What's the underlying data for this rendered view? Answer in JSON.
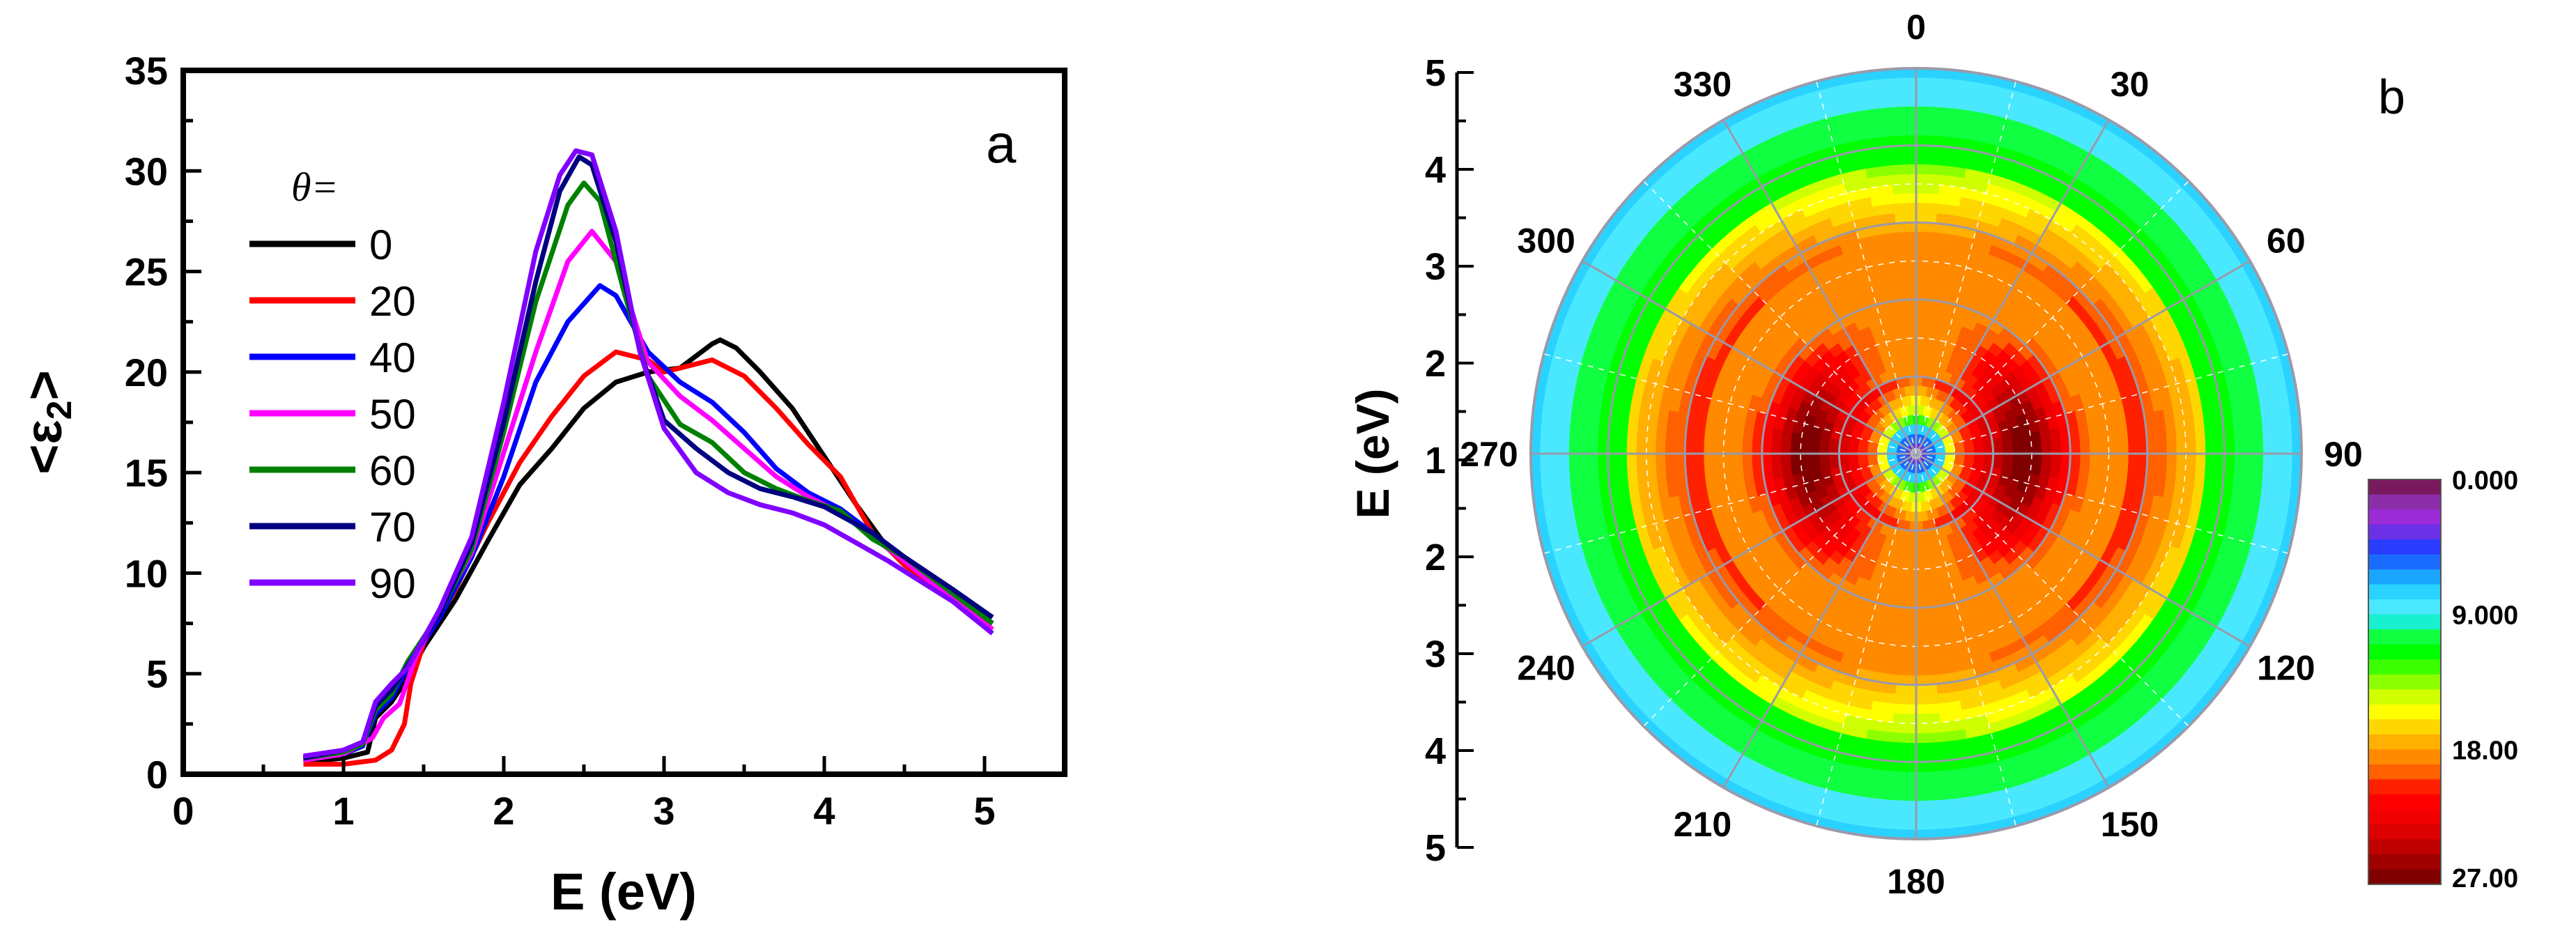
{
  "chart_data": [
    {
      "type": "line",
      "panel_letter": "a",
      "xlabel": "E (eV)",
      "ylabel_main": "<ε",
      "ylabel_sub": "2",
      "ylabel_end": ">",
      "xlim": [
        0,
        5.5
      ],
      "ylim": [
        0,
        35
      ],
      "xticks": [
        0,
        1,
        2,
        3,
        4,
        5
      ],
      "yticks": [
        0,
        5,
        10,
        15,
        20,
        25,
        30,
        35
      ],
      "legend_title": "θ=",
      "series": [
        {
          "name": "0",
          "color": "#000000",
          "points": [
            [
              0.75,
              0.6
            ],
            [
              1.0,
              0.8
            ],
            [
              1.15,
              1.1
            ],
            [
              1.2,
              2.8
            ],
            [
              1.3,
              3.6
            ],
            [
              1.4,
              4.8
            ],
            [
              1.5,
              6.3
            ],
            [
              1.7,
              8.7
            ],
            [
              1.9,
              11.6
            ],
            [
              2.1,
              14.4
            ],
            [
              2.3,
              16.2
            ],
            [
              2.5,
              18.2
            ],
            [
              2.7,
              19.5
            ],
            [
              2.9,
              20.0
            ],
            [
              3.1,
              20.2
            ],
            [
              3.3,
              21.4
            ],
            [
              3.35,
              21.6
            ],
            [
              3.45,
              21.2
            ],
            [
              3.6,
              20.0
            ],
            [
              3.8,
              18.2
            ],
            [
              4.0,
              15.8
            ],
            [
              4.2,
              13.4
            ],
            [
              4.4,
              11.2
            ],
            [
              4.6,
              10.2
            ],
            [
              4.8,
              8.8
            ],
            [
              5.05,
              7.5
            ]
          ]
        },
        {
          "name": "20",
          "color": "#ff0000",
          "points": [
            [
              0.75,
              0.5
            ],
            [
              1.0,
              0.5
            ],
            [
              1.2,
              0.7
            ],
            [
              1.3,
              1.2
            ],
            [
              1.38,
              2.5
            ],
            [
              1.42,
              4.5
            ],
            [
              1.5,
              6.5
            ],
            [
              1.7,
              9.2
            ],
            [
              1.9,
              12.5
            ],
            [
              2.1,
              15.5
            ],
            [
              2.3,
              17.8
            ],
            [
              2.5,
              19.8
            ],
            [
              2.7,
              21.0
            ],
            [
              2.9,
              20.6
            ],
            [
              3.0,
              20.0
            ],
            [
              3.15,
              20.3
            ],
            [
              3.3,
              20.6
            ],
            [
              3.5,
              19.8
            ],
            [
              3.7,
              18.2
            ],
            [
              3.9,
              16.4
            ],
            [
              4.1,
              14.8
            ],
            [
              4.3,
              12.0
            ],
            [
              4.5,
              10.4
            ],
            [
              4.8,
              8.8
            ],
            [
              5.05,
              7.2
            ]
          ]
        },
        {
          "name": "40",
          "color": "#0000ff",
          "points": [
            [
              0.75,
              0.7
            ],
            [
              1.0,
              1.0
            ],
            [
              1.12,
              1.4
            ],
            [
              1.2,
              3.0
            ],
            [
              1.3,
              3.8
            ],
            [
              1.4,
              5.3
            ],
            [
              1.6,
              7.8
            ],
            [
              1.8,
              10.8
            ],
            [
              2.0,
              14.8
            ],
            [
              2.2,
              19.5
            ],
            [
              2.4,
              22.5
            ],
            [
              2.6,
              24.3
            ],
            [
              2.7,
              23.8
            ],
            [
              2.9,
              21.0
            ],
            [
              3.1,
              19.5
            ],
            [
              3.3,
              18.5
            ],
            [
              3.5,
              17.0
            ],
            [
              3.7,
              15.2
            ],
            [
              3.9,
              14.0
            ],
            [
              4.1,
              13.2
            ],
            [
              4.3,
              12.0
            ],
            [
              4.5,
              10.6
            ],
            [
              4.8,
              9.0
            ],
            [
              5.05,
              7.5
            ]
          ]
        },
        {
          "name": "50",
          "color": "#ff00ff",
          "points": [
            [
              0.75,
              0.7
            ],
            [
              1.0,
              1.0
            ],
            [
              1.18,
              1.8
            ],
            [
              1.25,
              2.8
            ],
            [
              1.35,
              3.5
            ],
            [
              1.45,
              5.8
            ],
            [
              1.6,
              8.2
            ],
            [
              1.8,
              11.0
            ],
            [
              2.0,
              16.0
            ],
            [
              2.2,
              21.0
            ],
            [
              2.4,
              25.5
            ],
            [
              2.55,
              27.0
            ],
            [
              2.7,
              25.5
            ],
            [
              2.9,
              20.5
            ],
            [
              3.1,
              18.8
            ],
            [
              3.3,
              17.6
            ],
            [
              3.5,
              16.2
            ],
            [
              3.7,
              14.8
            ],
            [
              3.9,
              13.8
            ],
            [
              4.1,
              13.0
            ],
            [
              4.3,
              11.8
            ],
            [
              4.5,
              10.6
            ],
            [
              4.8,
              8.7
            ],
            [
              5.05,
              7.2
            ]
          ]
        },
        {
          "name": "60",
          "color": "#008000",
          "points": [
            [
              0.75,
              0.8
            ],
            [
              1.0,
              1.1
            ],
            [
              1.12,
              1.5
            ],
            [
              1.2,
              3.2
            ],
            [
              1.3,
              4.0
            ],
            [
              1.4,
              5.6
            ],
            [
              1.6,
              8.0
            ],
            [
              1.8,
              11.2
            ],
            [
              2.0,
              17.0
            ],
            [
              2.2,
              23.5
            ],
            [
              2.4,
              28.3
            ],
            [
              2.5,
              29.4
            ],
            [
              2.6,
              28.5
            ],
            [
              2.75,
              24.0
            ],
            [
              2.9,
              19.8
            ],
            [
              3.1,
              17.4
            ],
            [
              3.3,
              16.5
            ],
            [
              3.5,
              15.0
            ],
            [
              3.7,
              14.2
            ],
            [
              3.9,
              13.6
            ],
            [
              4.1,
              13.1
            ],
            [
              4.3,
              11.7
            ],
            [
              4.5,
              10.8
            ],
            [
              4.8,
              9.0
            ],
            [
              5.05,
              7.5
            ]
          ]
        },
        {
          "name": "70",
          "color": "#000080",
          "points": [
            [
              0.75,
              0.8
            ],
            [
              1.0,
              1.2
            ],
            [
              1.12,
              1.6
            ],
            [
              1.2,
              3.4
            ],
            [
              1.3,
              4.2
            ],
            [
              1.4,
              5.4
            ],
            [
              1.6,
              8.0
            ],
            [
              1.8,
              11.5
            ],
            [
              2.0,
              17.5
            ],
            [
              2.2,
              24.5
            ],
            [
              2.35,
              29.0
            ],
            [
              2.47,
              30.7
            ],
            [
              2.55,
              30.3
            ],
            [
              2.7,
              26.5
            ],
            [
              2.85,
              21.0
            ],
            [
              3.0,
              17.6
            ],
            [
              3.2,
              16.2
            ],
            [
              3.4,
              15.0
            ],
            [
              3.6,
              14.2
            ],
            [
              3.8,
              13.8
            ],
            [
              4.0,
              13.3
            ],
            [
              4.3,
              12.0
            ],
            [
              4.5,
              10.8
            ],
            [
              4.8,
              9.2
            ],
            [
              5.05,
              7.8
            ]
          ]
        },
        {
          "name": "90",
          "color": "#8000ff",
          "points": [
            [
              0.75,
              0.9
            ],
            [
              1.0,
              1.2
            ],
            [
              1.12,
              1.6
            ],
            [
              1.2,
              3.6
            ],
            [
              1.3,
              4.5
            ],
            [
              1.4,
              5.3
            ],
            [
              1.6,
              8.2
            ],
            [
              1.8,
              11.8
            ],
            [
              2.0,
              18.5
            ],
            [
              2.2,
              26.0
            ],
            [
              2.35,
              29.8
            ],
            [
              2.45,
              31.0
            ],
            [
              2.55,
              30.8
            ],
            [
              2.7,
              27.0
            ],
            [
              2.85,
              21.0
            ],
            [
              3.0,
              17.2
            ],
            [
              3.2,
              15.0
            ],
            [
              3.4,
              14.0
            ],
            [
              3.6,
              13.4
            ],
            [
              3.8,
              13.0
            ],
            [
              4.0,
              12.4
            ],
            [
              4.2,
              11.5
            ],
            [
              4.4,
              10.6
            ],
            [
              4.6,
              9.6
            ],
            [
              4.8,
              8.6
            ],
            [
              5.05,
              7.0
            ]
          ]
        }
      ]
    },
    {
      "type": "heatmap",
      "subtype": "polar",
      "panel_letter": "b",
      "ylabel": "E (eV)",
      "radial_range": [
        0,
        5
      ],
      "radial_ticks_upper": [
        "5",
        "4",
        "3",
        "2",
        "1"
      ],
      "radial_ticks_lower": [
        "2",
        "3",
        "4",
        "5"
      ],
      "angular_ticks": [
        "0",
        "30",
        "60",
        "90",
        "120",
        "150",
        "180",
        "210",
        "240",
        "270",
        "300",
        "330"
      ],
      "colorbar_labels": [
        "0.000",
        "9.000",
        "18.00",
        "27.00"
      ],
      "colorbar_range": [
        0,
        27
      ],
      "colorbar_colors": [
        "#7a1a5e",
        "#8b2da8",
        "#9a2bd6",
        "#6a30e6",
        "#2a3cff",
        "#1a6cff",
        "#1aa6ff",
        "#2ad2ff",
        "#4ae8ff",
        "#19f0d0",
        "#10ff40",
        "#00ff00",
        "#3cff00",
        "#8cff00",
        "#cfff00",
        "#ffff00",
        "#ffd700",
        "#ffb000",
        "#ff8a00",
        "#ff6000",
        "#ff2000",
        "#ff0000",
        "#f00000",
        "#dc0000",
        "#c00000",
        "#a00000",
        "#800000"
      ]
    }
  ]
}
